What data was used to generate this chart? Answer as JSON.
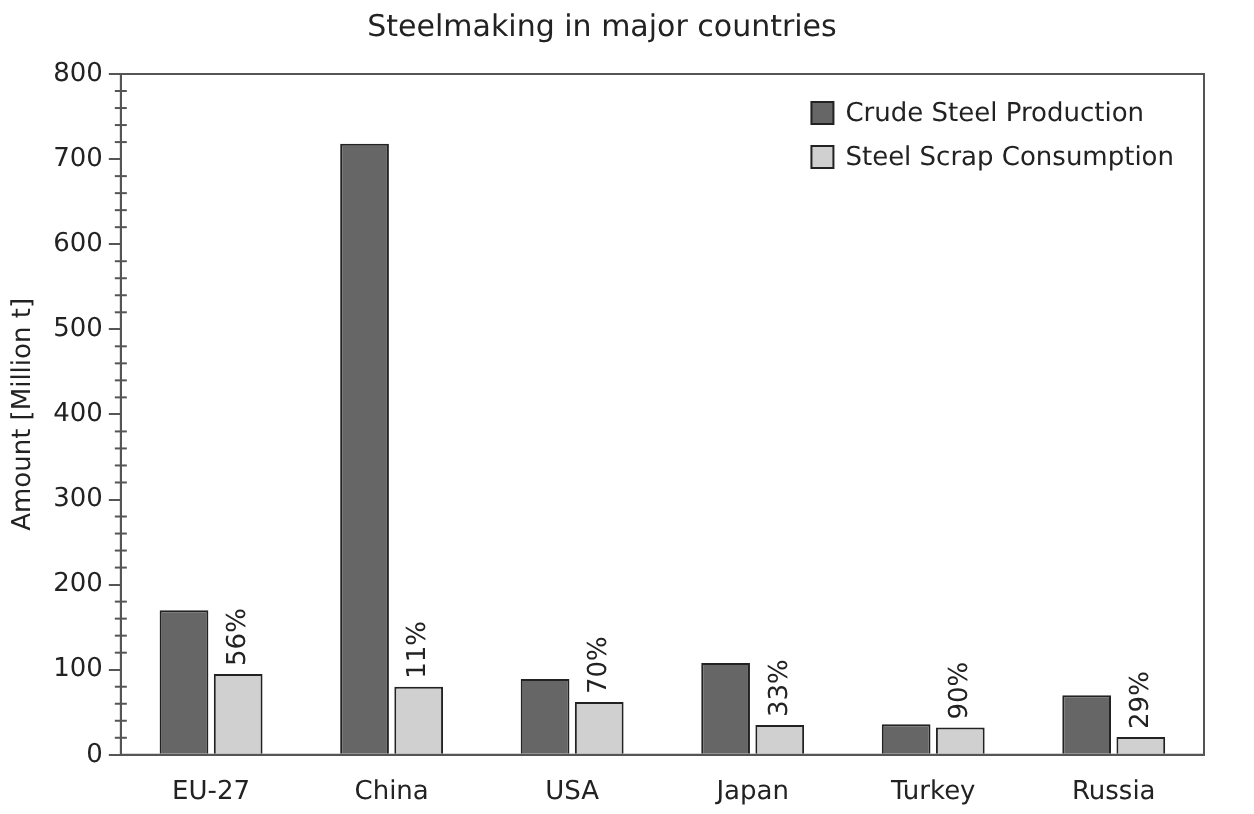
{
  "chart_data": {
    "type": "bar",
    "title": "Steelmaking in major countries",
    "ylabel": "Amount [Million t]",
    "categories": [
      "EU-27",
      "China",
      "USA",
      "Japan",
      "Turkey",
      "Russia"
    ],
    "series": [
      {
        "name": "Crude Steel Production",
        "color": "#666666",
        "values": [
          170,
          718,
          89,
          108,
          36,
          70
        ]
      },
      {
        "name": "Steel Scrap Consumption",
        "color": "#d0d0d0",
        "values": [
          95,
          80,
          62,
          35,
          32,
          21
        ]
      }
    ],
    "annotations": [
      {
        "text": "56%",
        "x": "EU-27",
        "y": 95
      },
      {
        "text": "11%",
        "x": "China",
        "y": 80
      },
      {
        "text": "70%",
        "x": "USA",
        "y": 62
      },
      {
        "text": "33%",
        "x": "Japan",
        "y": 35
      },
      {
        "text": "90%",
        "x": "Turkey",
        "y": 32
      },
      {
        "text": "29%",
        "x": "Russia",
        "y": 21
      }
    ],
    "ylim": [
      0,
      800
    ],
    "yticks": [
      0,
      100,
      200,
      300,
      400,
      500,
      600,
      700,
      800
    ],
    "grid": false,
    "legend": "top right"
  }
}
